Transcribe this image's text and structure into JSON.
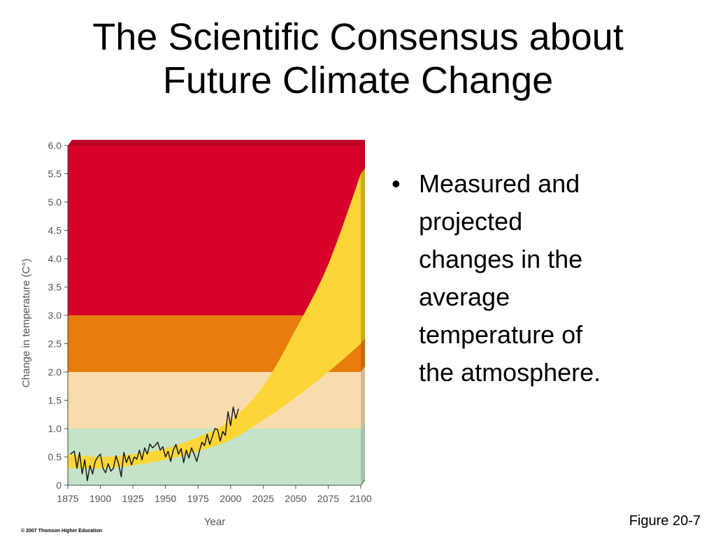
{
  "title_lines": [
    "The Scientific Consensus about",
    "Future Climate Change"
  ],
  "bullet": {
    "symbol": "•",
    "lines": [
      "Measured and",
      "projected",
      "changes in the",
      "average",
      "temperature of",
      "the atmosphere."
    ]
  },
  "figure_label": "Figure 20-7",
  "copyright": "© 2007 Thomson Higher Education",
  "chart_data": {
    "type": "line",
    "xlabel": "Year",
    "ylabel": "Change in temperature (C°)",
    "xlim": [
      1875,
      2100
    ],
    "ylim": [
      0,
      6.0
    ],
    "x_ticks": [
      "1875",
      "1900",
      "1925",
      "1950",
      "1975",
      "2000",
      "2025",
      "2050",
      "2075",
      "2100"
    ],
    "y_ticks": [
      "0",
      "0.5",
      "1.0",
      "1.5",
      "2.0",
      "2.5",
      "3.0",
      "3.5",
      "4.0",
      "4.5",
      "5.0",
      "5.5",
      "6.0"
    ],
    "bands": [
      {
        "from": 0,
        "to": 1.0,
        "color": "#c5e3c8"
      },
      {
        "from": 1.0,
        "to": 2.0,
        "color": "#f9dcae"
      },
      {
        "from": 2.0,
        "to": 3.0,
        "color": "#e77d0a"
      },
      {
        "from": 3.0,
        "to": 6.0,
        "color": "#d7002a"
      }
    ],
    "projection_band": {
      "color": "#fbd636",
      "x": [
        1875,
        1900,
        1925,
        1950,
        1975,
        2000,
        2025,
        2050,
        2075,
        2100
      ],
      "upper": [
        0.55,
        0.5,
        0.55,
        0.65,
        0.85,
        1.15,
        1.75,
        2.75,
        3.9,
        5.5
      ],
      "lower": [
        0.3,
        0.3,
        0.35,
        0.45,
        0.6,
        0.8,
        1.15,
        1.55,
        2.0,
        2.5
      ]
    },
    "series": [
      {
        "color": "#1a1a1a",
        "x": [
          1877,
          1880,
          1882,
          1884,
          1886,
          1888,
          1890,
          1892,
          1894,
          1896,
          1898,
          1900,
          1902,
          1904,
          1906,
          1908,
          1910,
          1912,
          1914,
          1916,
          1918,
          1920,
          1922,
          1924,
          1926,
          1928,
          1930,
          1932,
          1934,
          1936,
          1938,
          1940,
          1942,
          1944,
          1946,
          1948,
          1950,
          1952,
          1954,
          1956,
          1958,
          1960,
          1962,
          1964,
          1966,
          1968,
          1970,
          1972,
          1974,
          1976,
          1978,
          1980,
          1982,
          1984,
          1986,
          1988,
          1990,
          1992,
          1994,
          1996,
          1998,
          2000,
          2002,
          2004,
          2006
        ],
        "y": [
          0.55,
          0.6,
          0.3,
          0.58,
          0.2,
          0.45,
          0.08,
          0.35,
          0.2,
          0.42,
          0.5,
          0.55,
          0.3,
          0.22,
          0.38,
          0.25,
          0.3,
          0.52,
          0.38,
          0.15,
          0.58,
          0.4,
          0.52,
          0.36,
          0.5,
          0.46,
          0.62,
          0.45,
          0.66,
          0.55,
          0.73,
          0.66,
          0.7,
          0.76,
          0.62,
          0.68,
          0.5,
          0.6,
          0.42,
          0.62,
          0.72,
          0.55,
          0.65,
          0.4,
          0.62,
          0.48,
          0.66,
          0.55,
          0.42,
          0.6,
          0.76,
          0.7,
          0.9,
          0.72,
          0.86,
          1.0,
          0.98,
          0.78,
          0.95,
          0.88,
          1.3,
          1.05,
          1.38,
          1.18,
          1.35
        ]
      }
    ]
  }
}
